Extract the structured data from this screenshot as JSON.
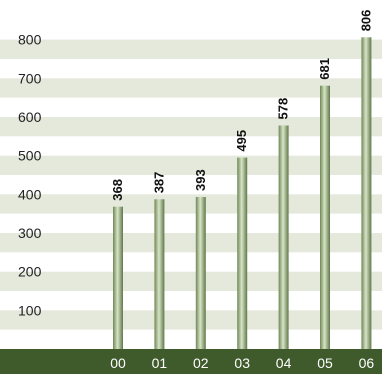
{
  "chart_data": {
    "type": "bar",
    "title": "",
    "xlabel": "",
    "ylabel": "",
    "categories": [
      "00",
      "01",
      "02",
      "03",
      "04",
      "05",
      "06"
    ],
    "values": [
      368,
      387,
      393,
      495,
      578,
      681,
      806
    ],
    "data_labels": [
      "368",
      "387",
      "393",
      "495",
      "578",
      "681",
      "806"
    ],
    "yticks": [
      "100",
      "200",
      "300",
      "400",
      "500",
      "600",
      "700",
      "800"
    ],
    "ylim": [
      0,
      900
    ],
    "grid": "alternating horizontal bands",
    "legend": "none",
    "colors": {
      "band": "#e4e9dc",
      "baseline": "#3f5a2b",
      "bar_dark": "#6e8757",
      "bar_light": "#d8e4c7",
      "category_text": "#ffffff"
    }
  }
}
